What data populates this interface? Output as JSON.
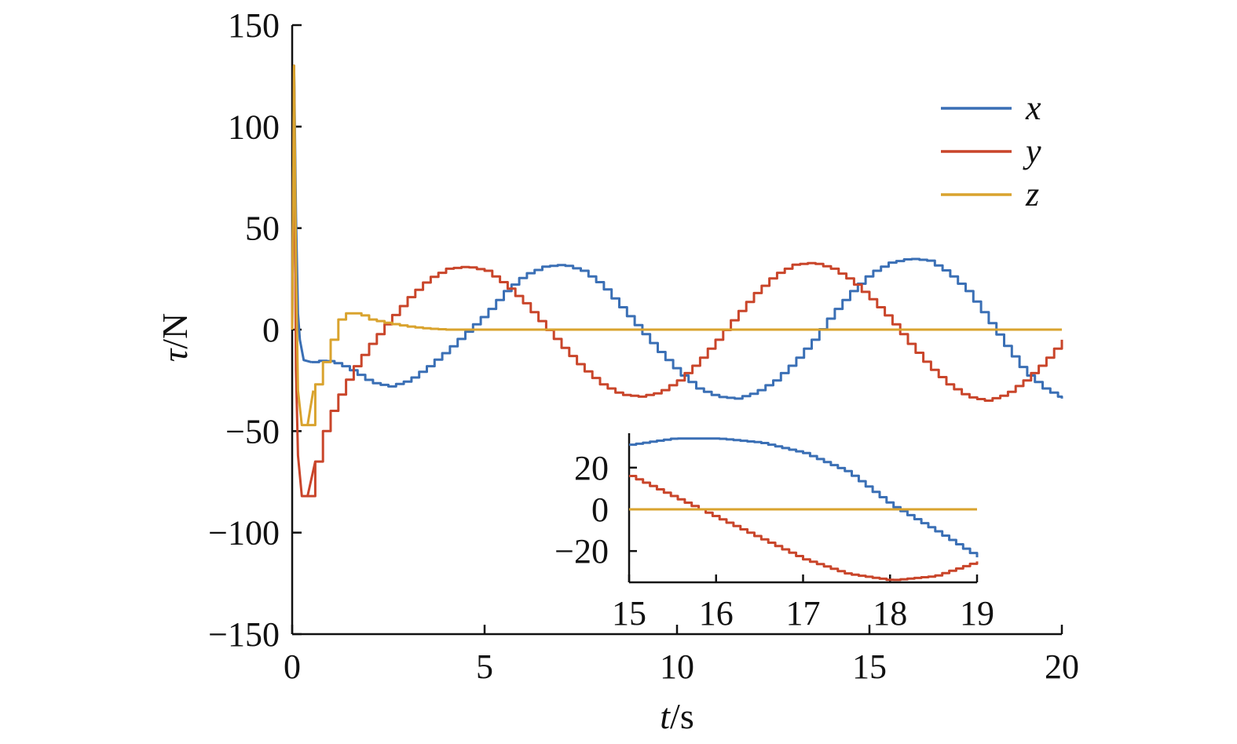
{
  "chart_data": [
    {
      "type": "line",
      "title": "",
      "xlabel_italic": "t",
      "xlabel_unit": "/s",
      "ylabel_italic": "τ",
      "ylabel_unit": "/N",
      "xlim": [
        0,
        20
      ],
      "ylim": [
        -150,
        150
      ],
      "xticks": [
        0,
        5,
        10,
        15,
        20
      ],
      "xtick_labels": [
        "0",
        "5",
        "10",
        "15",
        "20"
      ],
      "yticks": [
        -150,
        -100,
        -50,
        0,
        50,
        100,
        150
      ],
      "ytick_labels": [
        "−150",
        "−100",
        "−50",
        "0",
        "50",
        "100",
        "150"
      ],
      "grid": false,
      "legend": "top-right",
      "series": [
        {
          "name": "x",
          "color": "#3a6fb5",
          "points": [
            [
              0,
              0
            ],
            [
              0.05,
              130
            ],
            [
              0.1,
              55
            ],
            [
              0.15,
              8
            ],
            [
              0.2,
              -5
            ],
            [
              0.3,
              -15
            ],
            [
              0.5,
              -16
            ],
            [
              0.8,
              -15
            ],
            [
              1.2,
              -17
            ],
            [
              1.6,
              -21
            ],
            [
              2,
              -26
            ],
            [
              2.5,
              -28
            ],
            [
              3,
              -25
            ],
            [
              3.5,
              -18
            ],
            [
              4,
              -10
            ],
            [
              4.5,
              -1
            ],
            [
              5,
              8
            ],
            [
              5.5,
              19
            ],
            [
              6,
              27
            ],
            [
              6.5,
              31
            ],
            [
              7,
              32
            ],
            [
              7.5,
              29
            ],
            [
              8,
              22
            ],
            [
              8.5,
              11
            ],
            [
              9,
              0
            ],
            [
              9.5,
              -11
            ],
            [
              10,
              -21
            ],
            [
              10.5,
              -29
            ],
            [
              11,
              -33
            ],
            [
              11.5,
              -34
            ],
            [
              12,
              -31
            ],
            [
              12.5,
              -25
            ],
            [
              13,
              -16
            ],
            [
              13.5,
              -5
            ],
            [
              14,
              8
            ],
            [
              14.5,
              19
            ],
            [
              15,
              28
            ],
            [
              15.5,
              33
            ],
            [
              16,
              35
            ],
            [
              16.5,
              34
            ],
            [
              17,
              28
            ],
            [
              17.5,
              19
            ],
            [
              18,
              6
            ],
            [
              18.5,
              -8
            ],
            [
              19,
              -21
            ],
            [
              19.5,
              -29
            ],
            [
              20,
              -34
            ]
          ]
        },
        {
          "name": "y",
          "color": "#c9452a",
          "points": [
            [
              0,
              0
            ],
            [
              0.05,
              130
            ],
            [
              0.1,
              -20
            ],
            [
              0.15,
              -62
            ],
            [
              0.25,
              -82
            ],
            [
              0.4,
              -82
            ],
            [
              0.6,
              -65
            ],
            [
              0.8,
              -50
            ],
            [
              1,
              -40
            ],
            [
              1.3,
              -28
            ],
            [
              1.6,
              -18
            ],
            [
              2,
              -7
            ],
            [
              2.5,
              5
            ],
            [
              3,
              16
            ],
            [
              3.5,
              25
            ],
            [
              4,
              30
            ],
            [
              4.5,
              31
            ],
            [
              5,
              29
            ],
            [
              5.5,
              22
            ],
            [
              6,
              13
            ],
            [
              6.5,
              2
            ],
            [
              7,
              -9
            ],
            [
              7.5,
              -19
            ],
            [
              8,
              -27
            ],
            [
              8.5,
              -32
            ],
            [
              9,
              -33
            ],
            [
              9.5,
              -31
            ],
            [
              10,
              -25
            ],
            [
              10.5,
              -16
            ],
            [
              11,
              -5
            ],
            [
              11.5,
              7
            ],
            [
              12,
              18
            ],
            [
              12.5,
              27
            ],
            [
              13,
              32
            ],
            [
              13.5,
              33
            ],
            [
              14,
              30
            ],
            [
              14.5,
              24
            ],
            [
              15,
              15
            ],
            [
              15.5,
              5
            ],
            [
              16,
              -7
            ],
            [
              16.5,
              -18
            ],
            [
              17,
              -27
            ],
            [
              17.5,
              -33
            ],
            [
              18,
              -35
            ],
            [
              18.5,
              -32
            ],
            [
              19,
              -25
            ],
            [
              19.5,
              -16
            ],
            [
              20,
              -5
            ]
          ]
        },
        {
          "name": "z",
          "color": "#d9a32e",
          "points": [
            [
              0,
              0
            ],
            [
              0.05,
              130
            ],
            [
              0.1,
              30
            ],
            [
              0.15,
              -30
            ],
            [
              0.25,
              -47
            ],
            [
              0.4,
              -47
            ],
            [
              0.55,
              -30
            ],
            [
              0.75,
              -18
            ],
            [
              0.9,
              -12
            ],
            [
              1,
              -5
            ],
            [
              1.2,
              5
            ],
            [
              1.4,
              8
            ],
            [
              1.7,
              8
            ],
            [
              2,
              5
            ],
            [
              2.5,
              3
            ],
            [
              3,
              1.5
            ],
            [
              3.5,
              0.5
            ],
            [
              4,
              0
            ],
            [
              20,
              0
            ]
          ]
        }
      ]
    },
    {
      "type": "line",
      "title": "",
      "xlim": [
        15,
        19
      ],
      "ylim": [
        -35,
        35
      ],
      "xticks": [
        15,
        16,
        17,
        18,
        19
      ],
      "xtick_labels": [
        "15",
        "16",
        "17",
        "18",
        "19"
      ],
      "yticks": [
        -20,
        0,
        20
      ],
      "ytick_labels": [
        "−20",
        "0",
        "20"
      ],
      "grid": false,
      "series": [
        {
          "name": "x",
          "color": "#3a6fb5",
          "points": [
            [
              15,
              31
            ],
            [
              15.5,
              34
            ],
            [
              16,
              34
            ],
            [
              16.5,
              32
            ],
            [
              17,
              27
            ],
            [
              17.5,
              18
            ],
            [
              18,
              2
            ],
            [
              18.5,
              -10
            ],
            [
              19,
              -23
            ]
          ]
        },
        {
          "name": "y",
          "color": "#c9452a",
          "points": [
            [
              15,
              16
            ],
            [
              15.5,
              6
            ],
            [
              16,
              -4
            ],
            [
              16.5,
              -14
            ],
            [
              17,
              -24
            ],
            [
              17.5,
              -31
            ],
            [
              18,
              -34
            ],
            [
              18.5,
              -32
            ],
            [
              19,
              -25
            ]
          ]
        },
        {
          "name": "z",
          "color": "#d9a32e",
          "points": [
            [
              15,
              0
            ],
            [
              19,
              0
            ]
          ]
        }
      ]
    }
  ]
}
